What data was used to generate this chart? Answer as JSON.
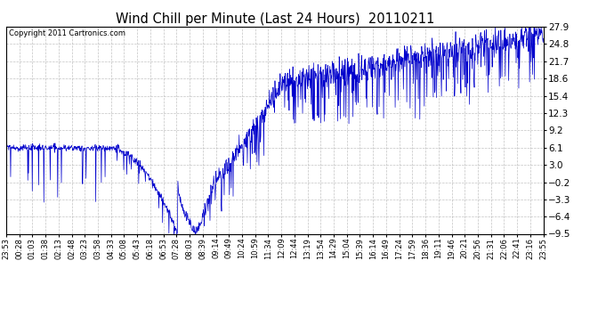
{
  "title": "Wind Chill per Minute (Last 24 Hours)  20110211",
  "copyright": "Copyright 2011 Cartronics.com",
  "yticks": [
    27.9,
    24.8,
    21.7,
    18.6,
    15.4,
    12.3,
    9.2,
    6.1,
    3.0,
    -0.2,
    -3.3,
    -6.4,
    -9.5
  ],
  "ymin": -9.5,
  "ymax": 27.9,
  "line_color": "#0000cc",
  "bg_color": "#ffffff",
  "grid_color": "#aaaaaa",
  "title_color": "#000000",
  "copyright_color": "#000000",
  "xtick_labels": [
    "23:53",
    "00:28",
    "01:03",
    "01:38",
    "02:13",
    "02:48",
    "03:23",
    "03:58",
    "04:33",
    "05:08",
    "05:43",
    "06:18",
    "06:53",
    "07:28",
    "08:03",
    "08:39",
    "09:14",
    "09:49",
    "10:24",
    "10:59",
    "11:34",
    "12:09",
    "12:44",
    "13:19",
    "13:54",
    "14:29",
    "15:04",
    "15:39",
    "16:14",
    "16:49",
    "17:24",
    "17:59",
    "18:36",
    "19:11",
    "19:46",
    "20:21",
    "20:56",
    "21:31",
    "22:06",
    "22:41",
    "23:16",
    "23:55"
  ],
  "figwidth": 6.9,
  "figheight": 3.75,
  "dpi": 100
}
